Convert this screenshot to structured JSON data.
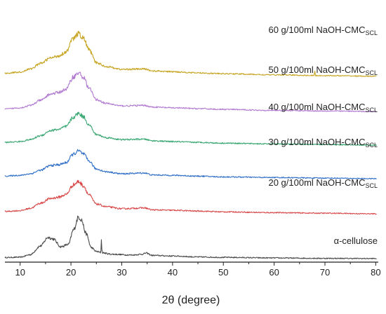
{
  "chart_data": {
    "type": "line",
    "xlabel": "2θ (degree)",
    "ylabel": "",
    "xlim": [
      7,
      80.5
    ],
    "xticks": [
      10,
      20,
      30,
      40,
      50,
      60,
      70,
      80
    ],
    "y_ticks_shown": false,
    "grid": false,
    "legend": "inline labels at right of each curve",
    "series": [
      {
        "name": "α-cellulose",
        "label_main": "α-cellulose",
        "label_sub": "",
        "color": "#4a4a4a",
        "baseline": 0,
        "points": [
          [
            7,
            0.45
          ],
          [
            10,
            0.55
          ],
          [
            12,
            1.2
          ],
          [
            14,
            3.4
          ],
          [
            15.5,
            5.6
          ],
          [
            16.5,
            5.2
          ],
          [
            18,
            3.2
          ],
          [
            19.5,
            3.8
          ],
          [
            20.5,
            7.5
          ],
          [
            21.5,
            10.8
          ],
          [
            22,
            10.2
          ],
          [
            23,
            6.5
          ],
          [
            24,
            3.0
          ],
          [
            25,
            2.0
          ],
          [
            26,
            1.7
          ],
          [
            28,
            1.3
          ],
          [
            32,
            1.1
          ],
          [
            34,
            1.3
          ],
          [
            34.8,
            1.6
          ],
          [
            36,
            1.0
          ],
          [
            40,
            0.85
          ],
          [
            45,
            0.6
          ],
          [
            50,
            0.5
          ],
          [
            60,
            0.35
          ],
          [
            70,
            0.25
          ],
          [
            80,
            0.2
          ]
        ],
        "spikes": [
          {
            "x": 26.0,
            "height": 3.6
          }
        ]
      },
      {
        "name": "20 g/100ml NaOH-CMC_SCL",
        "label_main": "20 g/100ml NaOH-CMC",
        "label_sub": "SCL",
        "color": "#d94848",
        "baseline": 11.5,
        "points": [
          [
            7,
            0.7
          ],
          [
            10,
            0.9
          ],
          [
            12,
            1.5
          ],
          [
            14,
            2.8
          ],
          [
            16,
            4.0
          ],
          [
            17.5,
            4.3
          ],
          [
            19,
            5.0
          ],
          [
            20.5,
            7.5
          ],
          [
            21.5,
            8.3
          ],
          [
            22.5,
            7.2
          ],
          [
            23.5,
            5.0
          ],
          [
            25,
            2.6
          ],
          [
            27,
            1.9
          ],
          [
            30,
            1.4
          ],
          [
            34.5,
            1.6
          ],
          [
            36,
            1.1
          ],
          [
            40,
            1.0
          ],
          [
            45,
            0.8
          ],
          [
            50,
            0.6
          ],
          [
            60,
            0.4
          ],
          [
            70,
            0.25
          ],
          [
            80,
            0.1
          ]
        ],
        "spikes": []
      },
      {
        "name": "30 g/100ml NaOH-CMC_SCL",
        "label_main": "30 g/100ml NaOH-CMC",
        "label_sub": "SCL",
        "color": "#2e6ec8",
        "baseline": 20.5,
        "points": [
          [
            7,
            0.7
          ],
          [
            10,
            0.9
          ],
          [
            12,
            1.3
          ],
          [
            14,
            2.2
          ],
          [
            16,
            3.4
          ],
          [
            17.5,
            3.6
          ],
          [
            19,
            4.1
          ],
          [
            20.5,
            6.3
          ],
          [
            21.5,
            7.1
          ],
          [
            22.5,
            6.3
          ],
          [
            23.5,
            4.6
          ],
          [
            25,
            2.5
          ],
          [
            27,
            1.8
          ],
          [
            30,
            1.3
          ],
          [
            34.5,
            1.5
          ],
          [
            36,
            1.0
          ],
          [
            40,
            0.9
          ],
          [
            45,
            0.7
          ],
          [
            50,
            0.5
          ],
          [
            60,
            0.35
          ],
          [
            70,
            0.2
          ],
          [
            80,
            0.05
          ]
        ],
        "spikes": []
      },
      {
        "name": "40 g/100ml NaOH-CMC_SCL",
        "label_main": "40 g/100ml NaOH-CMC",
        "label_sub": "SCL",
        "color": "#3aa873",
        "baseline": 29.0,
        "points": [
          [
            7,
            0.8
          ],
          [
            10,
            1.0
          ],
          [
            12,
            1.5
          ],
          [
            14,
            2.5
          ],
          [
            16,
            3.8
          ],
          [
            17.5,
            4.1
          ],
          [
            19,
            4.8
          ],
          [
            20.5,
            7.2
          ],
          [
            21.5,
            8.2
          ],
          [
            22.5,
            7.3
          ],
          [
            23.5,
            5.3
          ],
          [
            25,
            2.8
          ],
          [
            27,
            2.0
          ],
          [
            30,
            1.5
          ],
          [
            34.5,
            1.6
          ],
          [
            36,
            1.2
          ],
          [
            40,
            1.0
          ],
          [
            45,
            0.8
          ],
          [
            50,
            0.6
          ],
          [
            60,
            0.4
          ],
          [
            70,
            0.25
          ],
          [
            80,
            0.1
          ]
        ],
        "spikes": []
      },
      {
        "name": "50 g/100ml NaOH-CMC_SCL",
        "label_main": "50 g/100ml NaOH-CMC",
        "label_sub": "SCL",
        "color": "#b27bd1",
        "baseline": 37.5,
        "points": [
          [
            7,
            0.8
          ],
          [
            10,
            1.1
          ],
          [
            12,
            1.7
          ],
          [
            14,
            3.0
          ],
          [
            16,
            4.6
          ],
          [
            17.5,
            5.0
          ],
          [
            19,
            5.8
          ],
          [
            20.5,
            9.0
          ],
          [
            21.5,
            10.0
          ],
          [
            22.5,
            8.8
          ],
          [
            23.5,
            6.2
          ],
          [
            25,
            3.2
          ],
          [
            27,
            2.2
          ],
          [
            30,
            1.6
          ],
          [
            34.5,
            1.7
          ],
          [
            36,
            1.3
          ],
          [
            40,
            1.1
          ],
          [
            45,
            0.9
          ],
          [
            50,
            0.7
          ],
          [
            60,
            0.45
          ],
          [
            70,
            0.3
          ],
          [
            80,
            0.15
          ]
        ],
        "spikes": []
      },
      {
        "name": "60 g/100ml NaOH-CMC_SCL",
        "label_main": "60 g/100ml NaOH-CMC",
        "label_sub": "SCL",
        "color": "#c7a523",
        "baseline": 46.5,
        "points": [
          [
            7,
            0.9
          ],
          [
            10,
            1.2
          ],
          [
            12,
            2.0
          ],
          [
            14,
            3.4
          ],
          [
            16,
            4.8
          ],
          [
            17.5,
            5.3
          ],
          [
            19,
            6.3
          ],
          [
            20.5,
            9.8
          ],
          [
            21.5,
            11.0
          ],
          [
            22.5,
            9.8
          ],
          [
            23.5,
            7.0
          ],
          [
            25,
            3.6
          ],
          [
            27,
            2.6
          ],
          [
            30,
            1.9
          ],
          [
            34.5,
            2.0
          ],
          [
            36,
            1.5
          ],
          [
            40,
            1.3
          ],
          [
            45,
            1.0
          ],
          [
            50,
            0.8
          ],
          [
            60,
            0.5
          ],
          [
            70,
            0.3
          ],
          [
            80,
            0.15
          ]
        ],
        "spikes": [
          {
            "x": 68.0,
            "height": 1.3
          }
        ]
      }
    ]
  }
}
